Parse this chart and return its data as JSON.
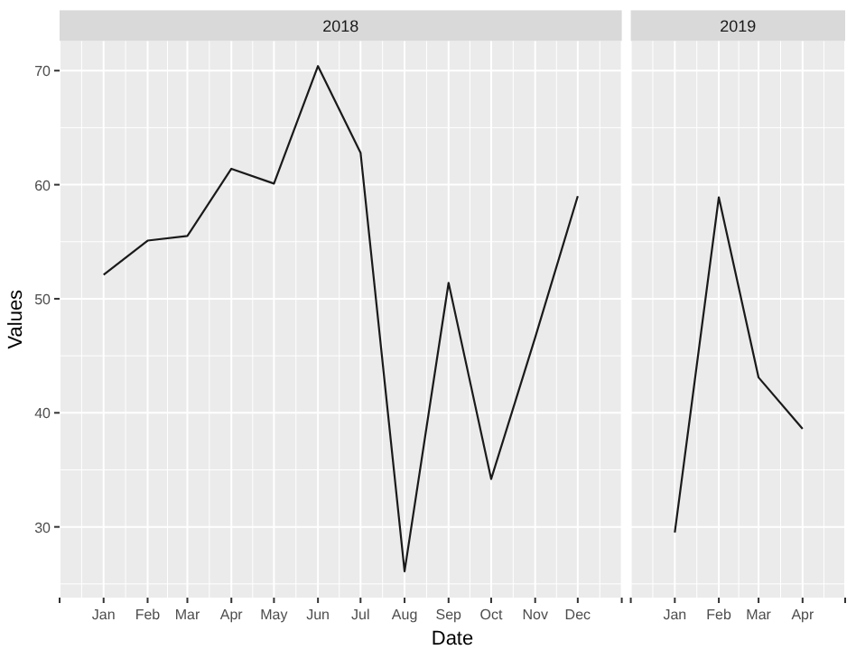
{
  "chart_data": [
    {
      "type": "line",
      "title": "2018",
      "xlabel": "Date",
      "ylabel": "Values",
      "grid": true,
      "xlim": [
        "2017-12-01",
        "2019-01-01"
      ],
      "ylim": [
        23.8,
        72.6
      ],
      "yticks": [
        30,
        40,
        50,
        60,
        70
      ],
      "xticks": [
        {
          "value": "2017-12-01",
          "label": null
        },
        {
          "value": "2018-01-01",
          "label": "Jan"
        },
        {
          "value": "2018-02-01",
          "label": "Feb"
        },
        {
          "value": "2018-03-01",
          "label": "Mar"
        },
        {
          "value": "2018-04-01",
          "label": "Apr"
        },
        {
          "value": "2018-05-01",
          "label": "May"
        },
        {
          "value": "2018-06-01",
          "label": "Jun"
        },
        {
          "value": "2018-07-01",
          "label": "Jul"
        },
        {
          "value": "2018-08-01",
          "label": "Aug"
        },
        {
          "value": "2018-09-01",
          "label": "Sep"
        },
        {
          "value": "2018-10-01",
          "label": "Oct"
        },
        {
          "value": "2018-11-01",
          "label": "Nov"
        },
        {
          "value": "2018-12-01",
          "label": "Dec"
        },
        {
          "value": "2019-01-01",
          "label": null
        }
      ],
      "x": [
        "2018-01-01",
        "2018-02-01",
        "2018-03-01",
        "2018-04-01",
        "2018-05-01",
        "2018-06-01",
        "2018-07-01",
        "2018-08-01",
        "2018-09-01",
        "2018-10-01",
        "2018-11-01",
        "2018-12-01"
      ],
      "series": [
        {
          "color": "#1a1a1a",
          "values": [
            52.1,
            55.1,
            55.5,
            61.4,
            60.1,
            70.4,
            62.8,
            26.1,
            51.4,
            34.2,
            46.6,
            59.0
          ]
        }
      ]
    },
    {
      "type": "line",
      "title": "2019",
      "grid": true,
      "tick_labels": "x",
      "xlim": [
        "2018-12-01",
        "2019-05-01"
      ],
      "ylim": [
        23.8,
        72.6
      ],
      "yticks": [
        30,
        40,
        50,
        60,
        70
      ],
      "xticks": [
        {
          "value": "2018-12-01",
          "label": null
        },
        {
          "value": "2019-01-01",
          "label": "Jan"
        },
        {
          "value": "2019-02-01",
          "label": "Feb"
        },
        {
          "value": "2019-03-01",
          "label": "Mar"
        },
        {
          "value": "2019-04-01",
          "label": "Apr"
        },
        {
          "value": "2019-05-01",
          "label": null
        }
      ],
      "x": [
        "2019-01-01",
        "2019-02-01",
        "2019-03-01",
        "2019-04-01"
      ],
      "series": [
        {
          "color": "#1a1a1a",
          "values": [
            29.5,
            58.9,
            43.1,
            38.6
          ]
        }
      ]
    }
  ]
}
